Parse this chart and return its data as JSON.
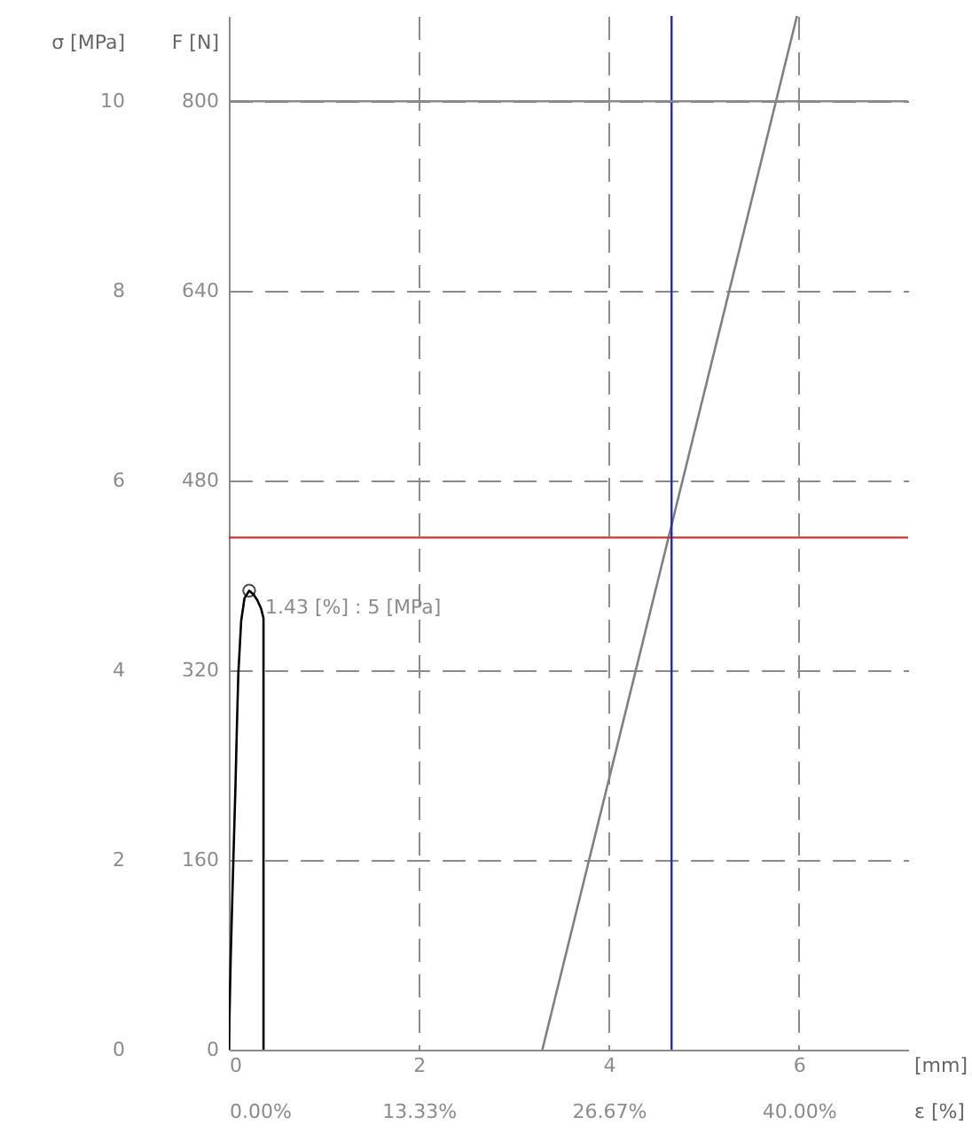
{
  "chart_data": {
    "type": "line",
    "xlabel": "[mm]",
    "x2label": "ε [%]",
    "ylabel": "σ [MPa]",
    "y2label": "F [N]",
    "xlim": [
      0,
      7.15
    ],
    "xticks": [
      0,
      2,
      4,
      6
    ],
    "x2lim": [
      0,
      47.67
    ],
    "x2ticks": [
      {
        "value": 0,
        "label": "0.00%"
      },
      {
        "value": 13.33,
        "label": "13.33%"
      },
      {
        "value": 26.67,
        "label": "26.67%"
      },
      {
        "value": 40,
        "label": "40.00%"
      }
    ],
    "ylim": [
      0,
      10.9
    ],
    "yticks": [
      0,
      2,
      4,
      6,
      8,
      10
    ],
    "y2lim": [
      0,
      872
    ],
    "y2ticks": [
      0,
      160,
      320,
      480,
      640,
      800
    ],
    "grid": true,
    "series": [
      {
        "color": "#000000",
        "x": [
          0,
          0.02,
          0.047,
          0.07,
          0.085,
          0.1,
          0.13,
          0.165,
          0.2145,
          0.26,
          0.3,
          0.34,
          0.365,
          0.365
        ],
        "values": [
          0,
          0.97,
          1.97,
          2.78,
          3.4,
          3.96,
          4.52,
          4.76,
          4.84,
          4.8,
          4.74,
          4.65,
          4.55,
          0
        ]
      },
      {
        "color": "#808080",
        "x": [
          3.3,
          5.98
        ],
        "values": [
          0,
          10.9
        ]
      }
    ],
    "ref_lines": [
      {
        "axis": "y",
        "value": 5.4,
        "color": "#cc3333"
      },
      {
        "axis": "x",
        "value": 4.66,
        "color": "#2a2aa0"
      },
      {
        "axis": "y",
        "value": 10,
        "color": "#8a8a8a"
      }
    ],
    "annotations": [
      {
        "text": "1.43 [%] :   5 [MPa]",
        "x": 0.2145,
        "y": 4.84
      }
    ]
  }
}
